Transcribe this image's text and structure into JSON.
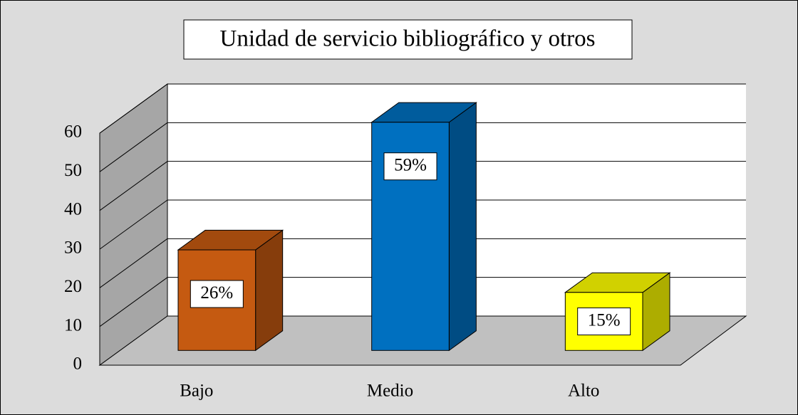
{
  "chart_data": {
    "type": "bar3d",
    "title": "Unidad de servicio bibliográfico y otros",
    "categories": [
      "Bajo",
      "Medio",
      "Alto"
    ],
    "values": [
      26,
      59,
      15
    ],
    "value_labels": [
      "26%",
      "59%",
      "15%"
    ],
    "colors": [
      "#c55a11",
      "#0070c0",
      "#ffff00"
    ],
    "ylim": [
      0,
      60
    ],
    "yticks": [
      0,
      10,
      20,
      30,
      40,
      50,
      60
    ],
    "grid": true
  }
}
